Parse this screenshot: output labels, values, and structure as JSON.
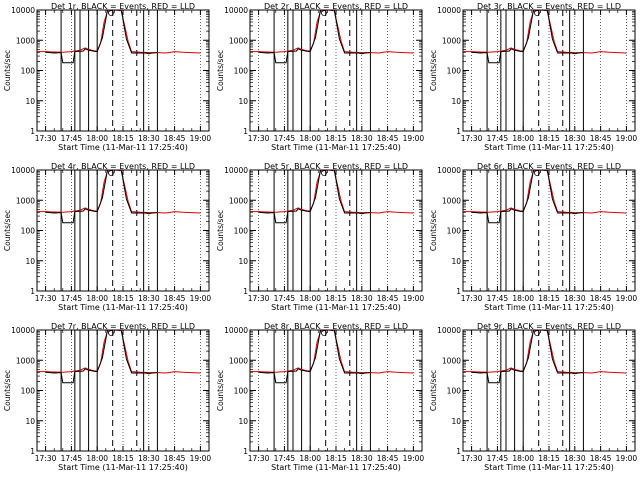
{
  "chart_data": {
    "type": "line",
    "layout": "3x3 grid",
    "shared": {
      "xlabel": "Start Time (11-Mar-11 17:25:40)",
      "ylabel": "Counts/sec",
      "ylog": true,
      "ylim": [
        1,
        10000
      ],
      "yticks": [
        "1",
        "10",
        "100",
        "1000",
        "10000"
      ],
      "xlim_minutes": [
        -5,
        95
      ],
      "xticks_minutes": [
        0,
        15,
        30,
        45,
        60,
        75,
        90
      ],
      "events_color": "#000000",
      "lld_color": "#e00000",
      "solid_markers_min": [
        9,
        17,
        20,
        25,
        30,
        57,
        65
      ],
      "dashed_markers_min": [
        39,
        53
      ],
      "events_data": [
        [
          0,
          400
        ],
        [
          5,
          380
        ],
        [
          9,
          390
        ],
        [
          10,
          180
        ],
        [
          16,
          180
        ],
        [
          17,
          420
        ],
        [
          22,
          440
        ],
        [
          23,
          520
        ],
        [
          25,
          470
        ],
        [
          28,
          430
        ],
        [
          30,
          420
        ],
        [
          33,
          1200
        ],
        [
          36,
          10000
        ],
        [
          44,
          10000
        ],
        [
          47,
          1100
        ],
        [
          50,
          380
        ],
        [
          58,
          380
        ],
        [
          60,
          360
        ],
        [
          62,
          380
        ],
        [
          65,
          390
        ]
      ],
      "lld_data": [
        [
          -5,
          420
        ],
        [
          0,
          420
        ],
        [
          5,
          410
        ],
        [
          10,
          400
        ],
        [
          15,
          420
        ],
        [
          20,
          470
        ],
        [
          23,
          560
        ],
        [
          25,
          500
        ],
        [
          28,
          450
        ],
        [
          30,
          440
        ],
        [
          32,
          800
        ],
        [
          34,
          4000
        ],
        [
          36,
          9000
        ],
        [
          40,
          10000
        ],
        [
          44,
          9500
        ],
        [
          46,
          3000
        ],
        [
          48,
          900
        ],
        [
          50,
          420
        ],
        [
          55,
          400
        ],
        [
          60,
          390
        ],
        [
          65,
          390
        ],
        [
          70,
          380
        ],
        [
          75,
          420
        ],
        [
          80,
          400
        ],
        [
          85,
          390
        ],
        [
          90,
          380
        ]
      ]
    },
    "panels": [
      {
        "title": "Det  1r, BLACK = Events, RED = LLD",
        "xticklabels": [
          "17:30",
          "17:45",
          "18:00",
          "18:15",
          "18:30",
          "18:45",
          "19:00"
        ]
      },
      {
        "title": "Det  2r, BLACK = Events, RED = LLD",
        "xticklabels": [
          "17:30",
          "17:45",
          "18:00",
          "18:15",
          "18:30",
          "18:45",
          "19:00"
        ]
      },
      {
        "title": "Det  3r, BLACK = Events, RED = LLD",
        "xticklabels": [
          "17:30",
          "17:45",
          "18:00",
          "18:15",
          "18:30",
          "18:45",
          "19:00"
        ]
      },
      {
        "title": "Det  4r, BLACK = Events, RED = LLD",
        "xticklabels": [
          "17:30",
          "17:45",
          "18:00",
          "18:15",
          "18:30",
          "18:45",
          "19:00"
        ]
      },
      {
        "title": "Det  5r, BLACK = Events, RED = LLD",
        "xticklabels": [
          "17:30",
          "17:45",
          "18:00",
          "18:15",
          "18:30",
          "18:45",
          "19:00"
        ]
      },
      {
        "title": "Det  6r, BLACK = Events, RED = LLD",
        "xticklabels": [
          "17:30",
          "17:45",
          "18:00",
          "18:15",
          "18:30",
          "18:45",
          "19:00"
        ]
      },
      {
        "title": "Det  7r, BLACK = Events, RED = LLD",
        "xticklabels": [
          "17:30",
          "17:45",
          "18:00",
          "18:15",
          "18:30",
          "18:45",
          "19:00"
        ]
      },
      {
        "title": "Det  8r, BLACK = Events, RED = LLD",
        "xticklabels": [
          "17:30",
          "17:45",
          "18:00",
          "18:15",
          "18:30",
          "18:45",
          "19:00"
        ]
      },
      {
        "title": "Det  9r, BLACK = Events, RED = LLD",
        "xticklabels": [
          "17:30",
          "17:45",
          "18:00",
          "18:15",
          "18:30",
          "18:45",
          "19:00"
        ]
      }
    ]
  }
}
